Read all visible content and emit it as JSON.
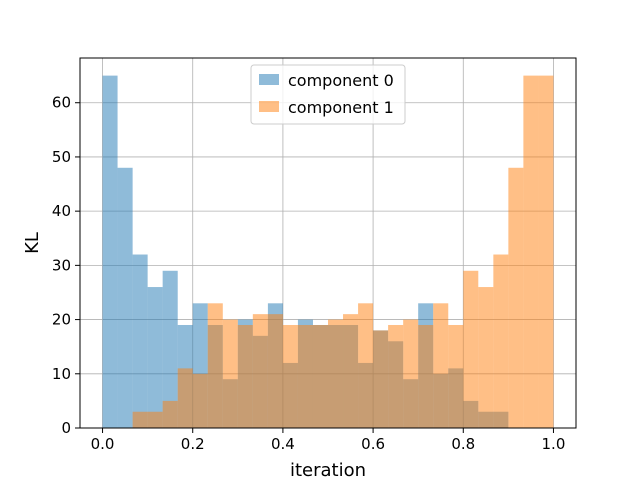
{
  "chart_data": {
    "type": "bar",
    "subtype": "histogram",
    "xlabel": "iteration",
    "ylabel": "KL",
    "xlim": [
      -0.05,
      1.05
    ],
    "ylim": [
      0,
      68.25
    ],
    "bin_edges": [
      0.0,
      0.0333,
      0.0667,
      0.1,
      0.1333,
      0.1667,
      0.2,
      0.2333,
      0.2667,
      0.3,
      0.3333,
      0.3667,
      0.4,
      0.4333,
      0.4667,
      0.5,
      0.5333,
      0.5667,
      0.6,
      0.6333,
      0.6667,
      0.7,
      0.7333,
      0.7667,
      0.8,
      0.8333,
      0.8667,
      0.9,
      0.9333,
      0.9667,
      1.0
    ],
    "x_ticks": [
      "0.0",
      "0.2",
      "0.4",
      "0.6",
      "0.8",
      "1.0"
    ],
    "x_tick_values": [
      0.0,
      0.2,
      0.4,
      0.6,
      0.8,
      1.0
    ],
    "y_ticks": [
      "0",
      "10",
      "20",
      "30",
      "40",
      "50",
      "60"
    ],
    "y_tick_values": [
      0,
      10,
      20,
      30,
      40,
      50,
      60
    ],
    "grid": true,
    "legend_position": "top-center",
    "series": [
      {
        "name": "component 0",
        "color": "#1f77b4",
        "alpha": 0.5,
        "values": [
          65,
          48,
          32,
          26,
          29,
          19,
          23,
          19,
          9,
          20,
          17,
          23,
          12,
          20,
          19,
          19,
          19,
          12,
          18,
          16,
          9,
          23,
          10,
          11,
          5,
          3,
          3,
          0,
          0,
          0
        ]
      },
      {
        "name": "component 1",
        "color": "#ff7f0e",
        "alpha": 0.5,
        "values": [
          0,
          0,
          3,
          3,
          5,
          11,
          10,
          23,
          20,
          19,
          21,
          21,
          19,
          19,
          19,
          20,
          21,
          23,
          18,
          19,
          20,
          19,
          23,
          19,
          29,
          26,
          32,
          48,
          65,
          65
        ]
      }
    ]
  }
}
